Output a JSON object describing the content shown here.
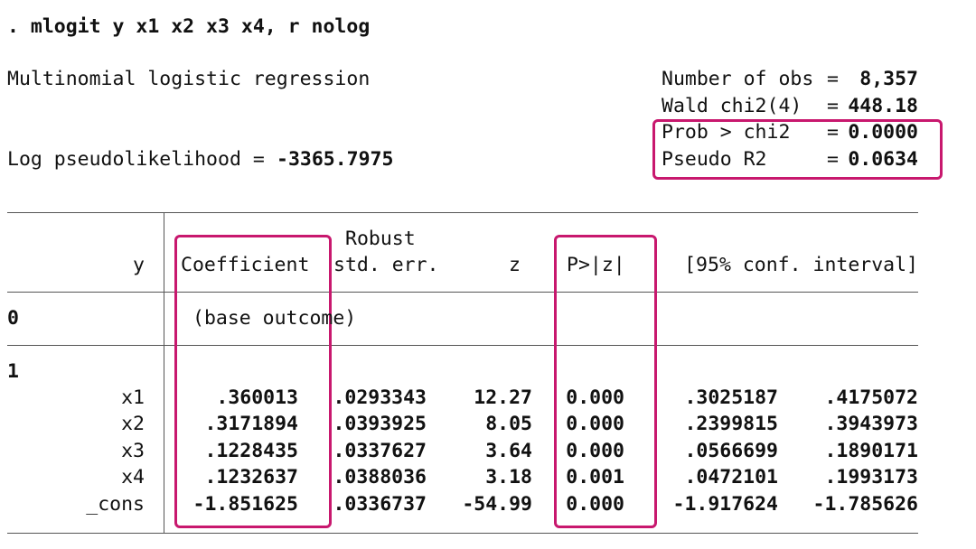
{
  "command": ". mlogit y x1 x2 x3 x4, r nolog",
  "header": {
    "title": "Multinomial logistic regression",
    "loglik_label": "Log pseudolikelihood =",
    "loglik_value": "-3365.7975",
    "stats": [
      {
        "label": "Number of obs",
        "eq": "=",
        "value": "8,357"
      },
      {
        "label": "Wald chi2(4)",
        "eq": "=",
        "value": "448.18"
      },
      {
        "label": "Prob > chi2",
        "eq": "=",
        "value": "0.0000"
      },
      {
        "label": "Pseudo R2",
        "eq": "=",
        "value": "0.0634"
      }
    ]
  },
  "table": {
    "robust": "Robust",
    "columns": [
      "y",
      "Coefficient",
      "std. err.",
      "z",
      "P>|z|",
      "[95% conf. interval]"
    ],
    "rows": [
      {
        "label": "0",
        "note": "(base outcome)"
      },
      {
        "label": "1"
      },
      {
        "label": "x1",
        "cells": [
          ".360013",
          ".0293343",
          "12.27",
          "0.000",
          ".3025187",
          ".4175072"
        ]
      },
      {
        "label": "x2",
        "cells": [
          ".3171894",
          ".0393925",
          "8.05",
          "0.000",
          ".2399815",
          ".3943973"
        ]
      },
      {
        "label": "x3",
        "cells": [
          ".1228435",
          ".0337627",
          "3.64",
          "0.000",
          ".0566699",
          ".1890171"
        ]
      },
      {
        "label": "x4",
        "cells": [
          ".1232637",
          ".0388036",
          "3.18",
          "0.001",
          ".0472101",
          ".1993173"
        ]
      },
      {
        "label": "_cons",
        "cells": [
          "-1.851625",
          ".0336737",
          "-54.99",
          "0.000",
          "-1.917624",
          "-1.785626"
        ]
      }
    ]
  }
}
